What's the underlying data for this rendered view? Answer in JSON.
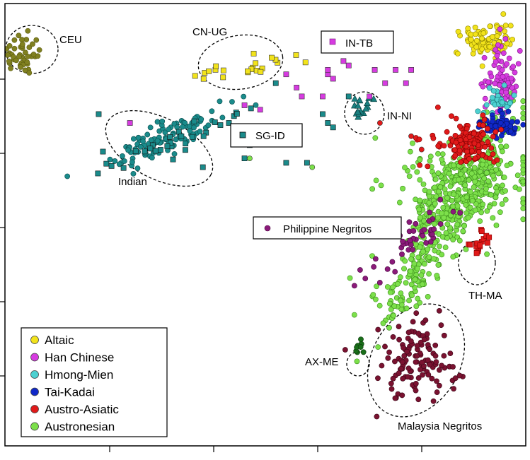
{
  "chart_data": {
    "type": "scatter",
    "title": "",
    "xlabel": "",
    "ylabel": "",
    "xlim": [
      0,
      100
    ],
    "ylim": [
      0,
      100
    ],
    "grid": false,
    "legend_position": "bottom-left",
    "legend": [
      {
        "label": "Altaic",
        "color": "#f2e31b"
      },
      {
        "label": "Han Chinese",
        "color": "#d63be0"
      },
      {
        "label": "Hmong-Mien",
        "color": "#4cd1d1"
      },
      {
        "label": "Tai-Kadai",
        "color": "#1028c8"
      },
      {
        "label": "Austro-Asiatic",
        "color": "#e11a1a"
      },
      {
        "label": "Austronesian",
        "color": "#7ce04a"
      }
    ],
    "annotations": [
      {
        "id": "ceu",
        "text": "CEU"
      },
      {
        "id": "cn-ug",
        "text": "CN-UG"
      },
      {
        "id": "in-tb",
        "text": "IN-TB"
      },
      {
        "id": "in-ni",
        "text": "IN-NI"
      },
      {
        "id": "sg-id",
        "text": "SG-ID"
      },
      {
        "id": "indian",
        "text": "Indian"
      },
      {
        "id": "philippine-negritos",
        "text": "Philippine Negritos"
      },
      {
        "id": "th-ma",
        "text": "TH-MA"
      },
      {
        "id": "ax-me",
        "text": "AX-ME"
      },
      {
        "id": "malaysia-negritos",
        "text": "Malaysia Negritos"
      }
    ],
    "clusters": [
      {
        "name": "CEU",
        "shape": "circle",
        "fill": "#808020",
        "stroke": "#5a5a10",
        "cx": 3.5,
        "cy": 88.5,
        "sx": 2.0,
        "sy": 2.0,
        "rot": 0,
        "n": 45
      },
      {
        "name": "CN-UG",
        "shape": "square",
        "fill": "#f2e31b",
        "stroke": "#333333",
        "cx": 46,
        "cy": 85.5,
        "sx": 6.0,
        "sy": 1.3,
        "rot": 8,
        "n": 22
      },
      {
        "name": "IN-NI",
        "shape": "triangle",
        "fill": "#1a8080",
        "stroke": "#0a3a3a",
        "cx": 68.7,
        "cy": 76.5,
        "sx": 1.3,
        "sy": 1.8,
        "rot": 0,
        "n": 16
      },
      {
        "name": "Indian",
        "shape": "circle",
        "fill": "#1a8b8b",
        "stroke": "#0b4b4b",
        "cx": 30,
        "cy": 69,
        "sx": 7.5,
        "sy": 1.7,
        "rot": 27,
        "n": 110
      },
      {
        "name": "Indian-sq",
        "shape": "square",
        "fill": "#1a8b8b",
        "stroke": "#111111",
        "cx": 31,
        "cy": 68,
        "sx": 7.5,
        "sy": 1.5,
        "rot": 27,
        "n": 30
      },
      {
        "name": "TH-MA",
        "shape": "square",
        "fill": "#e11a1a",
        "stroke": "#8a0000",
        "cx": 91,
        "cy": 46,
        "sx": 1.2,
        "sy": 1.6,
        "rot": 0,
        "n": 18
      },
      {
        "name": "AX-ME",
        "shape": "circle",
        "fill": "#1a6e1a",
        "stroke": "#0b3a0b",
        "cx": 68.2,
        "cy": 22,
        "sx": 0.6,
        "sy": 0.7,
        "rot": 0,
        "n": 8
      },
      {
        "name": "Malaysia Negritos",
        "shape": "circle",
        "fill": "#7a1230",
        "stroke": "#3b0818",
        "cx": 79,
        "cy": 20,
        "sx": 4.2,
        "sy": 3.8,
        "rot": 60,
        "n": 120
      },
      {
        "name": "Philippine Negritos",
        "shape": "circle",
        "fill": "#8b1a7a",
        "stroke": "#4a0a40",
        "cx": 79,
        "cy": 47,
        "sx": 6.0,
        "sy": 1.6,
        "rot": 45,
        "n": 45
      },
      {
        "name": "Altaic",
        "shape": "circle",
        "fill": "#f2e31b",
        "stroke": "#8a8000",
        "cx": 92.5,
        "cy": 91.5,
        "sx": 2.4,
        "sy": 1.8,
        "rot": 0,
        "n": 90
      },
      {
        "name": "Han Chinese",
        "shape": "circle",
        "fill": "#d63be0",
        "stroke": "#7a1a80",
        "cx": 95,
        "cy": 82,
        "sx": 1.6,
        "sy": 4.5,
        "rot": 0,
        "n": 90
      },
      {
        "name": "Hmong-Mien",
        "shape": "circle",
        "fill": "#4cd1d1",
        "stroke": "#1a7a7a",
        "cx": 95,
        "cy": 77.5,
        "sx": 1.4,
        "sy": 1.6,
        "rot": 0,
        "n": 35
      },
      {
        "name": "Tai-Kadai",
        "shape": "circle",
        "fill": "#1028c8",
        "stroke": "#06106a",
        "cx": 94.8,
        "cy": 72.5,
        "sx": 1.8,
        "sy": 1.4,
        "rot": 0,
        "n": 60
      },
      {
        "name": "Austro-Asiatic main",
        "shape": "circle",
        "fill": "#e11a1a",
        "stroke": "#7a0000",
        "cx": 89.5,
        "cy": 68.5,
        "sx": 2.3,
        "sy": 2.2,
        "rot": 0,
        "n": 120
      },
      {
        "name": "Austro-Asiatic scattered",
        "shape": "circle",
        "fill": "#e11a1a",
        "stroke": "#7a0000",
        "cx": 85,
        "cy": 69,
        "sx": 4.0,
        "sy": 3.0,
        "rot": 0,
        "n": 18
      },
      {
        "name": "Austronesian main",
        "shape": "circle",
        "fill": "#7ce04a",
        "stroke": "#3a8a1a",
        "cx": 86,
        "cy": 54,
        "sx": 11.0,
        "sy": 2.8,
        "rot": 62,
        "n": 360
      },
      {
        "name": "Austronesian upper",
        "shape": "circle",
        "fill": "#7ce04a",
        "stroke": "#3a8a1a",
        "cx": 88,
        "cy": 60,
        "sx": 6.5,
        "sy": 4.2,
        "rot": 0,
        "n": 220
      },
      {
        "name": "Austronesian lower",
        "shape": "circle",
        "fill": "#7ce04a",
        "stroke": "#3a8a1a",
        "cx": 78,
        "cy": 36,
        "sx": 6.0,
        "sy": 1.6,
        "rot": 62,
        "n": 60
      }
    ],
    "scatter_points": [
      {
        "shape": "square",
        "fill": "#d63be0",
        "points": [
          [
            61,
            79
          ],
          [
            63,
            83
          ],
          [
            66,
            86
          ],
          [
            62,
            84
          ],
          [
            71,
            85
          ],
          [
            73,
            82
          ],
          [
            57,
            79
          ],
          [
            70,
            79
          ],
          [
            75,
            85
          ],
          [
            78,
            85
          ],
          [
            54,
            84
          ],
          [
            56,
            81
          ],
          [
            62,
            85
          ],
          [
            65,
            87
          ],
          [
            77,
            82
          ],
          [
            46,
            77
          ],
          [
            49,
            76
          ],
          [
            24,
            73
          ]
        ]
      },
      {
        "shape": "square",
        "fill": "#1a8b8b",
        "stroke": "#111111",
        "points": [
          [
            18,
            75
          ],
          [
            43,
            73
          ],
          [
            47,
            68
          ],
          [
            54,
            64
          ],
          [
            58,
            64
          ],
          [
            62,
            73
          ],
          [
            61,
            75
          ],
          [
            63,
            72
          ],
          [
            66,
            79
          ],
          [
            52,
            82
          ],
          [
            46,
            65
          ],
          [
            38,
            63
          ]
        ]
      },
      {
        "shape": "circle",
        "fill": "#7ce04a",
        "points": [
          [
            47,
            65
          ],
          [
            59,
            63
          ]
        ]
      },
      {
        "shape": "circle",
        "fill": "#e11a1a",
        "points": [
          [
            72,
            73
          ],
          [
            78,
            70
          ],
          [
            80,
            67
          ]
        ]
      }
    ]
  }
}
